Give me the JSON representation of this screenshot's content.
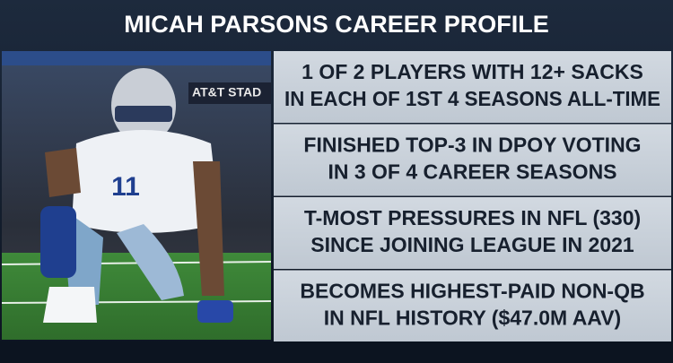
{
  "header": {
    "title": "MICAH PARSONS CAREER PROFILE"
  },
  "photo": {
    "signage": "AT&T STAD",
    "jersey_number": "11"
  },
  "facts": [
    {
      "lines": [
        "1 OF 2 PLAYERS WITH 12+ SACKS",
        "IN EACH OF 1ST 4 SEASONS ALL-TIME"
      ]
    },
    {
      "lines": [
        "FINISHED TOP-3 IN DPOY VOTING",
        "IN 3 OF 4 CAREER SEASONS"
      ]
    },
    {
      "lines": [
        "T-MOST PRESSURES IN NFL (330)",
        "SINCE JOINING LEAGUE IN 2021"
      ]
    },
    {
      "lines": [
        "BECOMES HIGHEST-PAID NON-QB",
        "IN NFL HISTORY ($47.0M AAV)"
      ]
    }
  ]
}
